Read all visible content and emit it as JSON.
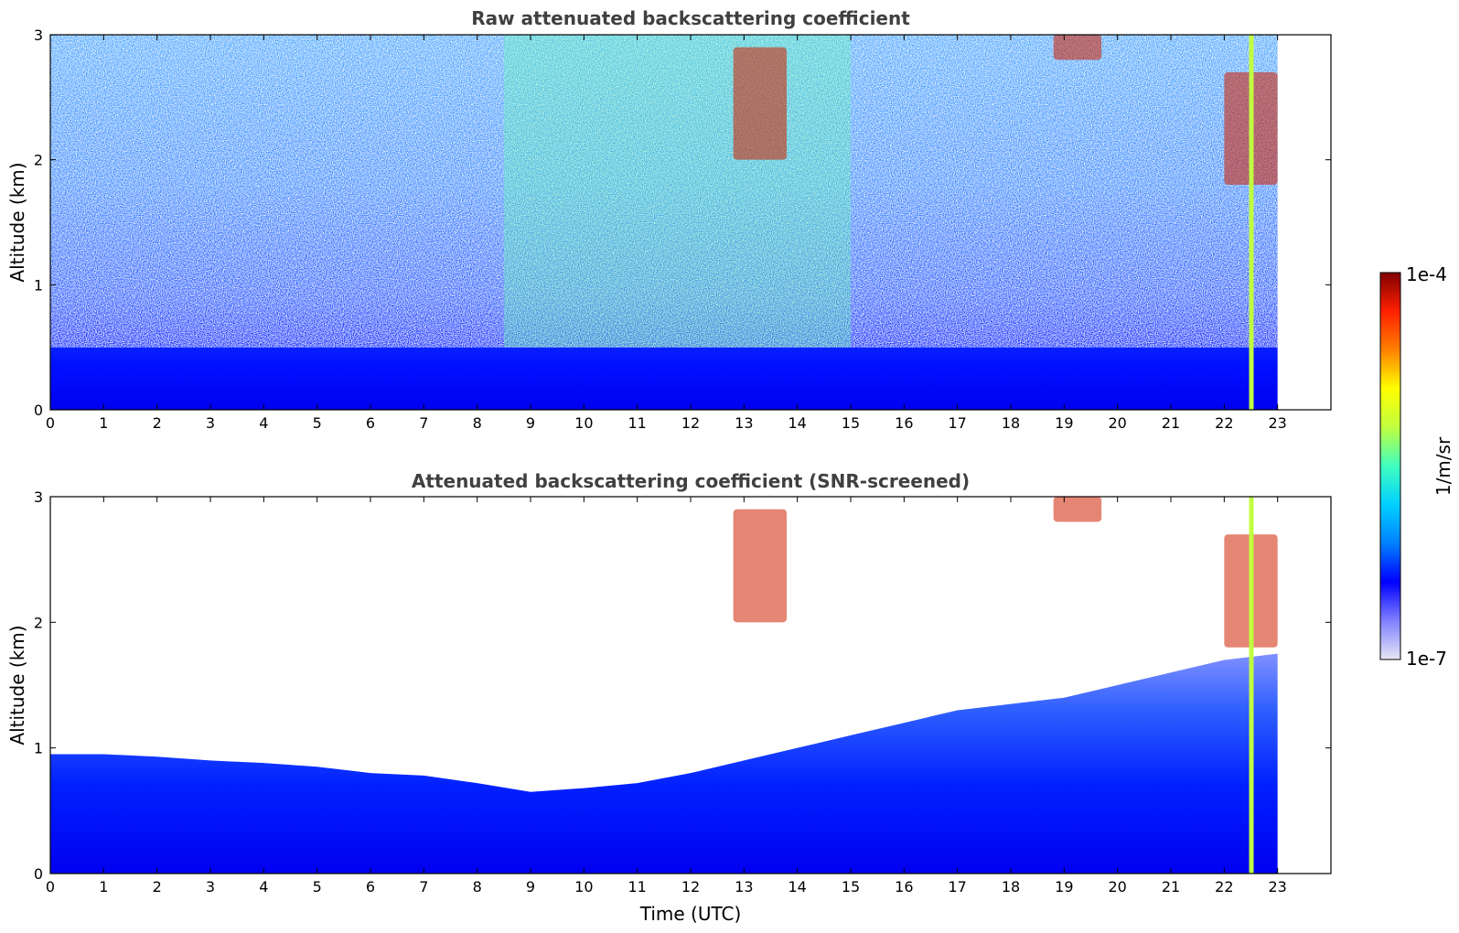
{
  "chart_data": [
    {
      "type": "heatmap",
      "title": "Raw attenuated backscattering coefficient",
      "xlabel": "",
      "ylabel": "Altitude (km)",
      "xlim": [
        0,
        24
      ],
      "ylim": [
        0,
        3
      ],
      "x_ticks": [
        0,
        1,
        2,
        3,
        4,
        5,
        6,
        7,
        8,
        9,
        10,
        11,
        12,
        13,
        14,
        15,
        16,
        17,
        18,
        19,
        20,
        21,
        22,
        23
      ],
      "y_ticks": [
        0,
        1,
        2,
        3
      ],
      "data_x_range": [
        0,
        23
      ],
      "features": [
        {
          "kind": "dense-boundary-layer",
          "x_range": [
            0,
            23
          ],
          "altitude_range": [
            0,
            0.5
          ],
          "level": "low"
        },
        {
          "kind": "noisy-background",
          "x_range": [
            0,
            23
          ],
          "altitude_range": [
            0.5,
            3
          ],
          "level": "noise"
        },
        {
          "kind": "enhanced-noise",
          "x_range": [
            8.5,
            15
          ],
          "altitude_range": [
            0.5,
            3
          ],
          "level": "medium"
        },
        {
          "kind": "cloud",
          "x_range": [
            12.8,
            13.8
          ],
          "altitude_range": [
            2.0,
            2.9
          ],
          "level": "high"
        },
        {
          "kind": "cloud",
          "x_range": [
            18.8,
            19.7
          ],
          "altitude_range": [
            2.8,
            3.0
          ],
          "level": "high"
        },
        {
          "kind": "cloud",
          "x_range": [
            22.0,
            23.0
          ],
          "altitude_range": [
            1.8,
            2.7
          ],
          "level": "high"
        },
        {
          "kind": "vertical-streak",
          "x": 22.5,
          "altitude_range": [
            0,
            3
          ],
          "level": "high"
        }
      ]
    },
    {
      "type": "heatmap",
      "title": "Attenuated backscattering coefficient (SNR-screened)",
      "xlabel": "Time (UTC)",
      "ylabel": "Altitude (km)",
      "xlim": [
        0,
        24
      ],
      "ylim": [
        0,
        3
      ],
      "x_ticks": [
        0,
        1,
        2,
        3,
        4,
        5,
        6,
        7,
        8,
        9,
        10,
        11,
        12,
        13,
        14,
        15,
        16,
        17,
        18,
        19,
        20,
        21,
        22,
        23
      ],
      "y_ticks": [
        0,
        1,
        2,
        3
      ],
      "data_x_range": [
        0,
        23
      ],
      "boundary_layer_top_km": [
        [
          0,
          0.95
        ],
        [
          1,
          0.95
        ],
        [
          2,
          0.93
        ],
        [
          3,
          0.9
        ],
        [
          4,
          0.88
        ],
        [
          5,
          0.85
        ],
        [
          6,
          0.8
        ],
        [
          7,
          0.78
        ],
        [
          8,
          0.72
        ],
        [
          9,
          0.65
        ],
        [
          10,
          0.68
        ],
        [
          11,
          0.72
        ],
        [
          12,
          0.8
        ],
        [
          13,
          0.9
        ],
        [
          14,
          1.0
        ],
        [
          15,
          1.1
        ],
        [
          16,
          1.2
        ],
        [
          17,
          1.3
        ],
        [
          18,
          1.35
        ],
        [
          19,
          1.4
        ],
        [
          20,
          1.5
        ],
        [
          21,
          1.6
        ],
        [
          22,
          1.7
        ],
        [
          23,
          1.75
        ]
      ],
      "features": [
        {
          "kind": "cloud",
          "x_range": [
            12.8,
            13.8
          ],
          "altitude_range": [
            2.0,
            2.9
          ],
          "level": "high"
        },
        {
          "kind": "cloud",
          "x_range": [
            18.8,
            19.7
          ],
          "altitude_range": [
            2.8,
            3.0
          ],
          "level": "high"
        },
        {
          "kind": "cloud",
          "x_range": [
            22.0,
            23.0
          ],
          "altitude_range": [
            1.8,
            2.7
          ],
          "level": "high"
        },
        {
          "kind": "vertical-streak",
          "x": 22.5,
          "altitude_range": [
            0,
            3
          ],
          "level": "high"
        }
      ]
    }
  ],
  "colorbar": {
    "max_label": "1e-4",
    "min_label": "1e-7",
    "unit_label": "1/m/sr",
    "colormap": "jet",
    "colors": [
      "#e6e6f5",
      "#8080ff",
      "#0000ff",
      "#0080ff",
      "#00d0ff",
      "#40ffc0",
      "#c0ff40",
      "#ffff00",
      "#ff8000",
      "#ff2000",
      "#800000"
    ]
  }
}
